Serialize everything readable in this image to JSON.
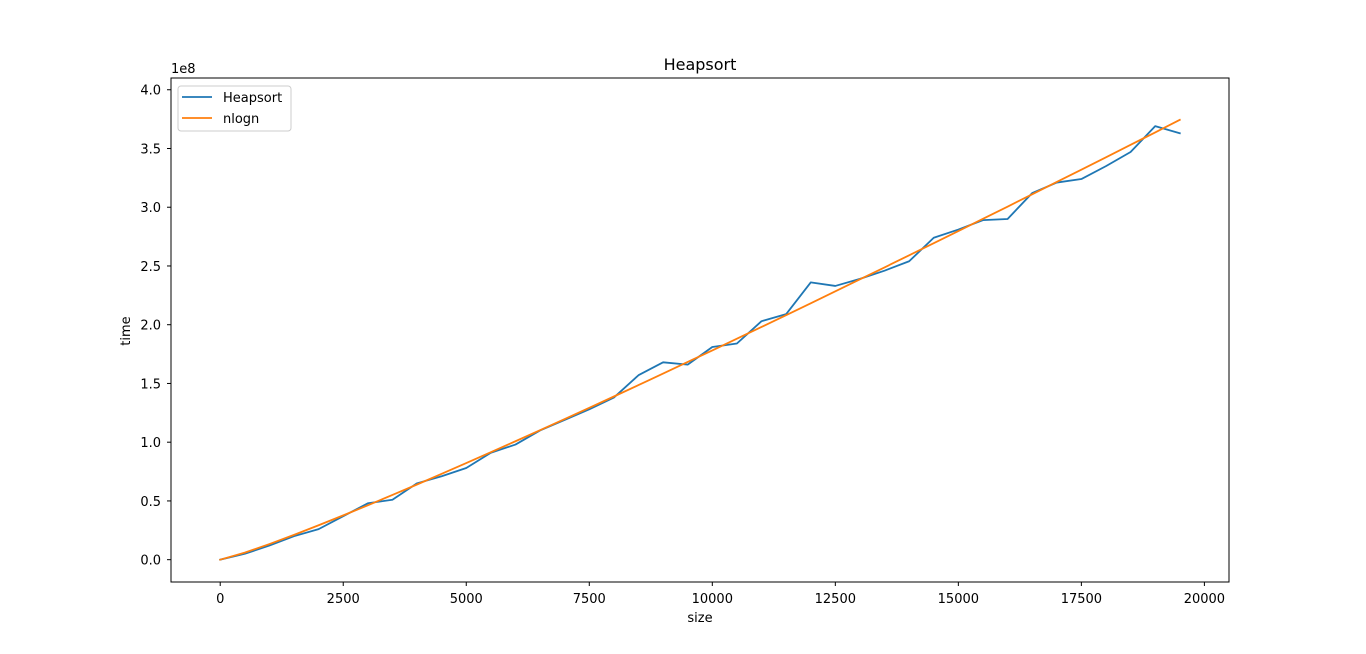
{
  "chart_data": {
    "type": "line",
    "title": "Heapsort",
    "xlabel": "size",
    "ylabel": "time",
    "y_offset_label": "1e8",
    "xlim": [
      -1000,
      20500
    ],
    "ylim": [
      -0.19,
      4.1
    ],
    "y_units_multiplier": 100000000,
    "xticks": [
      0,
      2500,
      5000,
      7500,
      10000,
      12500,
      15000,
      17500,
      20000
    ],
    "xtick_labels": [
      "0",
      "2500",
      "5000",
      "7500",
      "10000",
      "12500",
      "15000",
      "17500",
      "20000"
    ],
    "yticks": [
      0.0,
      0.5,
      1.0,
      1.5,
      2.0,
      2.5,
      3.0,
      3.5,
      4.0
    ],
    "ytick_labels": [
      "0.0",
      "0.5",
      "1.0",
      "1.5",
      "2.0",
      "2.5",
      "3.0",
      "3.5",
      "4.0"
    ],
    "grid": false,
    "legend_position": "top-left",
    "series": [
      {
        "name": "Heapsort",
        "color": "#1f77b4",
        "x": [
          0,
          500,
          1000,
          1500,
          2000,
          2500,
          3000,
          3500,
          4000,
          4500,
          5000,
          5500,
          6000,
          6500,
          7000,
          7500,
          8000,
          8500,
          9000,
          9500,
          10000,
          10500,
          11000,
          11500,
          12000,
          12500,
          13000,
          13500,
          14000,
          14500,
          15000,
          15500,
          16000,
          16500,
          17000,
          17500,
          18000,
          18500,
          19000,
          19500
        ],
        "y": [
          0.0,
          0.05,
          0.12,
          0.2,
          0.26,
          0.37,
          0.48,
          0.51,
          0.65,
          0.71,
          0.78,
          0.91,
          0.98,
          1.1,
          1.19,
          1.28,
          1.38,
          1.57,
          1.68,
          1.66,
          1.81,
          1.84,
          2.03,
          2.09,
          2.36,
          2.33,
          2.39,
          2.46,
          2.54,
          2.74,
          2.81,
          2.89,
          2.9,
          3.12,
          3.21,
          3.24,
          3.35,
          3.47,
          3.69,
          3.63
        ]
      },
      {
        "name": "nlogn",
        "color": "#ff7f0e",
        "x": [
          0,
          500,
          1000,
          1500,
          2000,
          2500,
          3000,
          3500,
          4000,
          4500,
          5000,
          5500,
          6000,
          6500,
          7000,
          7500,
          8000,
          8500,
          9000,
          9500,
          10000,
          10500,
          11000,
          11500,
          12000,
          12500,
          13000,
          13500,
          14000,
          14500,
          15000,
          15500,
          16000,
          16500,
          17000,
          17500,
          18000,
          18500,
          19000,
          19500
        ],
        "y": [
          0.0,
          0.06,
          0.133,
          0.211,
          0.293,
          0.377,
          0.463,
          0.551,
          0.64,
          0.731,
          0.822,
          0.915,
          1.008,
          1.102,
          1.197,
          1.293,
          1.389,
          1.486,
          1.584,
          1.683,
          1.781,
          1.881,
          1.981,
          2.081,
          2.182,
          2.284,
          2.386,
          2.488,
          2.591,
          2.694,
          2.797,
          2.901,
          3.005,
          3.11,
          3.215,
          3.32,
          3.425,
          3.531,
          3.637,
          3.744
        ]
      }
    ]
  }
}
